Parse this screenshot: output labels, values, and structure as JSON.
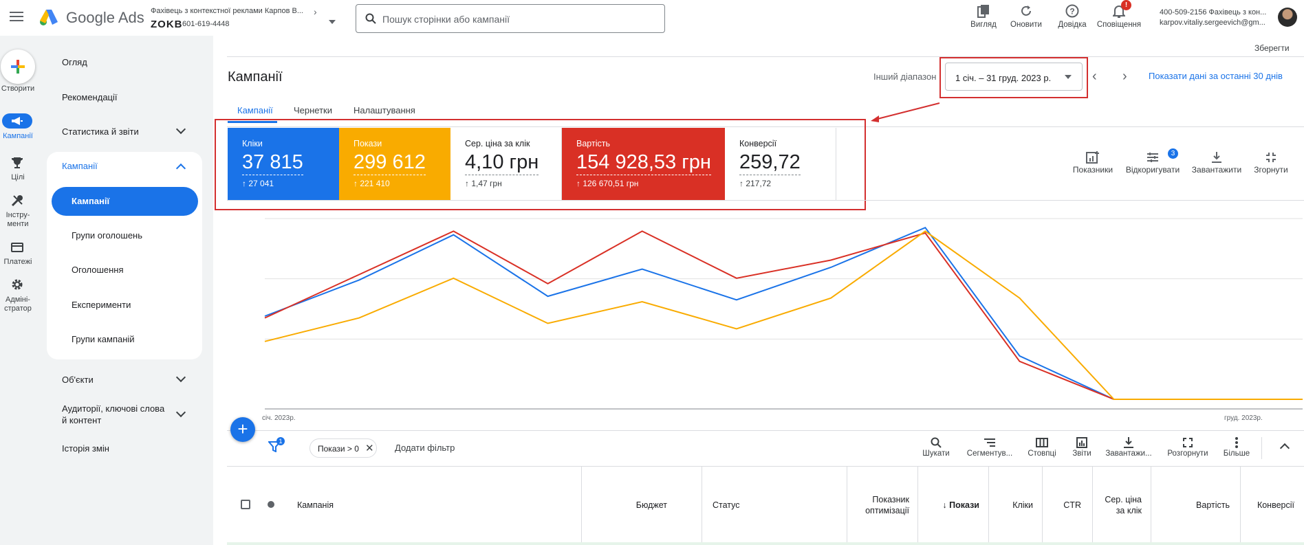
{
  "app": {
    "name": "Google Ads"
  },
  "account": {
    "name": "Фахівець з контекстної реклами Карпов В...",
    "code": "ZOKB",
    "id": "601-619-4448"
  },
  "search": {
    "placeholder": "Пошук сторінки або кампанії"
  },
  "toolbar": {
    "view": "Вигляд",
    "refresh": "Оновити",
    "help": "Довідка",
    "notifications": "Сповіщення",
    "notifications_count": "!"
  },
  "user": {
    "line1": "400-509-2156 Фахівець з кон...",
    "line2": "karpov.vitaliy.sergeevich@gm..."
  },
  "rail": {
    "create": "Створити",
    "campaigns": "Кампанії",
    "goals": "Цілі",
    "tools": "Інстру-\nменти",
    "billing": "Платежі",
    "admin": "Адміні-\nстратор"
  },
  "nav": {
    "overview": "Огляд",
    "recommendations": "Рекомендації",
    "insights": "Статистика й звіти",
    "campaigns_group": "Кампанії",
    "campaigns": "Кампанії",
    "ad_groups": "Групи оголошень",
    "ads": "Оголошення",
    "experiments": "Експерименти",
    "campaign_groups": "Групи кампаній",
    "assets": "Об'єкти",
    "audiences": "Аудиторії, ключові слова\nй контент",
    "change_history": "Історія змін"
  },
  "header": {
    "save": "Зберегти",
    "title": "Кампанії",
    "range_label": "Інший діапазон",
    "date_range": "1 січ. – 31 груд. 2023 р.",
    "last30": "Показати дані за останні 30 днів"
  },
  "tabs": [
    "Кампанії",
    "Чернетки",
    "Налаштування"
  ],
  "metrics": [
    {
      "title": "Кліки",
      "value": "37 815",
      "delta": "↑ 27 041",
      "color": "#1a73e8"
    },
    {
      "title": "Покази",
      "value": "299 612",
      "delta": "↑ 221 410",
      "color": "#f9ab00"
    },
    {
      "title": "Сер. ціна за клік",
      "value": "4,10 грн",
      "delta": "↑ 1,47 грн",
      "color": "#ffffff"
    },
    {
      "title": "Вартість",
      "value": "154 928,53 грн",
      "delta": "↑ 126 670,51 грн",
      "color": "#d93025"
    },
    {
      "title": "Конверсії",
      "value": "259,72",
      "delta": "↑ 217,72",
      "color": "#ffffff"
    }
  ],
  "chart_tools": {
    "metrics": "Показники",
    "adjust": "Відкоригувати",
    "adjust_badge": "3",
    "download": "Завантажити",
    "collapse": "Згорнути"
  },
  "chart_data": {
    "type": "line",
    "x": [
      "p1",
      "p2",
      "p3",
      "p4",
      "p5",
      "p6",
      "p7",
      "p8",
      "p9",
      "p10",
      "p11",
      "p12"
    ],
    "x_start_label": "січ. 2023р.",
    "x_end_label": "груд. 2023р.",
    "ylim": [
      0,
      1
    ],
    "grid": true,
    "series": [
      {
        "color": "#1a73e8",
        "values": [
          0.46,
          0.66,
          0.91,
          0.57,
          0.72,
          0.55,
          0.73,
          0.95,
          0.24,
          0.0,
          0.0,
          0.0
        ]
      },
      {
        "color": "#d93025",
        "values": [
          0.45,
          0.69,
          0.93,
          0.64,
          0.93,
          0.67,
          0.77,
          0.92,
          0.21,
          0.0,
          0.0,
          0.0
        ]
      },
      {
        "color": "#f9ab00",
        "values": [
          0.32,
          0.45,
          0.67,
          0.42,
          0.54,
          0.39,
          0.56,
          0.93,
          0.56,
          0.0,
          0.0,
          0.0
        ]
      }
    ]
  },
  "table_toolbar": {
    "filter_badge": "1",
    "filter_chip": "Покази > 0",
    "add_filter": "Додати фільтр",
    "search": "Шукати",
    "segment": "Сегментув...",
    "columns": "Стовпці",
    "reports": "Звіти",
    "download": "Завантажи...",
    "expand": "Розгорнути",
    "more": "Більше"
  },
  "table": {
    "columns": [
      "Кампанія",
      "Бюджет",
      "Статус",
      "Показник\nоптимізації",
      "↓ Покази",
      "Кліки",
      "CTR",
      "Сер. ціна\nза клік",
      "Вартість",
      "Конверсії"
    ]
  }
}
